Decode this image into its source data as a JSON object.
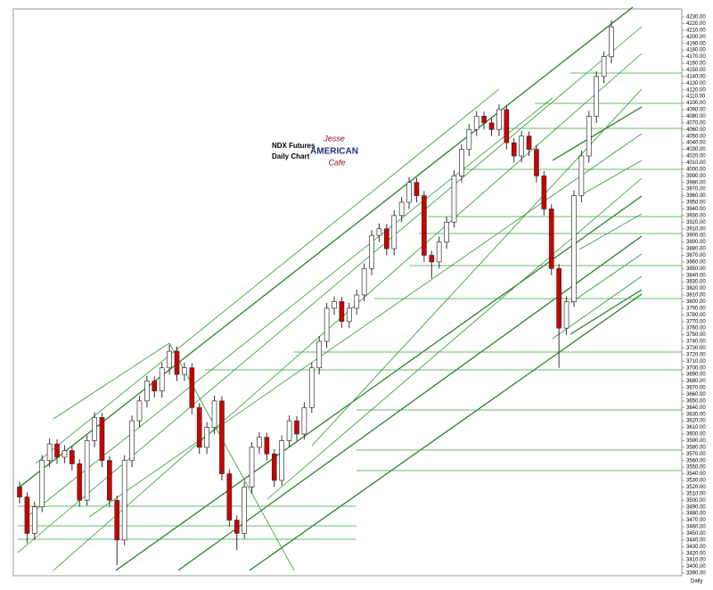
{
  "chart_data": {
    "type": "candlestick",
    "title": "NDX  Futures",
    "subtitle": "Daily Chart",
    "logo": [
      "Jesse",
      "AMERICAN",
      "Cafe"
    ],
    "period_label": "Daily",
    "up_color": "#ffffff",
    "down_color": "#cc0000",
    "wick_color": "#333333",
    "ylim": [
      3390,
      4230
    ],
    "yticks": [
      {
        "value": 3390,
        "label": "3390.00"
      },
      {
        "value": 3400,
        "label": "3400.00"
      },
      {
        "value": 3410,
        "label": "3410.00"
      },
      {
        "value": 3420,
        "label": "3420.00"
      },
      {
        "value": 3430,
        "label": "3430.00"
      },
      {
        "value": 3440,
        "label": "3440.00"
      },
      {
        "value": 3450,
        "label": "3450.00"
      },
      {
        "value": 3460,
        "label": "3460.00"
      },
      {
        "value": 3470,
        "label": "3470.00"
      },
      {
        "value": 3480,
        "label": "3480.00"
      },
      {
        "value": 3490,
        "label": "3490.00"
      },
      {
        "value": 3500,
        "label": "3500.00"
      },
      {
        "value": 3510,
        "label": "3510.00"
      },
      {
        "value": 3520,
        "label": "3520.00"
      },
      {
        "value": 3530,
        "label": "3530.00"
      },
      {
        "value": 3540,
        "label": "3540.00"
      },
      {
        "value": 3550,
        "label": "3550.00"
      },
      {
        "value": 3560,
        "label": "3560.00"
      },
      {
        "value": 3570,
        "label": "3570.00"
      },
      {
        "value": 3580,
        "label": "3580.00"
      },
      {
        "value": 3590,
        "label": "3590.00"
      },
      {
        "value": 3600,
        "label": "3600.00"
      },
      {
        "value": 3610,
        "label": "3610.00"
      },
      {
        "value": 3620,
        "label": "3620.00"
      },
      {
        "value": 3630,
        "label": "3630.00"
      },
      {
        "value": 3640,
        "label": "3640.00"
      },
      {
        "value": 3650,
        "label": "3650.00"
      },
      {
        "value": 3660,
        "label": "3660.00"
      },
      {
        "value": 3670,
        "label": "3670.00"
      },
      {
        "value": 3680,
        "label": "3680.00"
      },
      {
        "value": 3690,
        "label": "3690.00"
      },
      {
        "value": 3700,
        "label": "3700.00"
      },
      {
        "value": 3710,
        "label": "3710.00"
      },
      {
        "value": 3720,
        "label": "3720.00"
      },
      {
        "value": 3730,
        "label": "3730.00"
      },
      {
        "value": 3740,
        "label": "3740.00"
      },
      {
        "value": 3750,
        "label": "3750.00"
      },
      {
        "value": 3760,
        "label": "3760.00"
      },
      {
        "value": 3770,
        "label": "3770.00"
      },
      {
        "value": 3780,
        "label": "3780.00"
      },
      {
        "value": 3790,
        "label": "3790.00"
      },
      {
        "value": 3800,
        "label": "3800.00"
      },
      {
        "value": 3810,
        "label": "3810.00"
      },
      {
        "value": 3820,
        "label": "3820.00"
      },
      {
        "value": 3830,
        "label": "3830.00"
      },
      {
        "value": 3840,
        "label": "3840.00"
      },
      {
        "value": 3850,
        "label": "3850.00"
      },
      {
        "value": 3860,
        "label": "3860.00"
      },
      {
        "value": 3870,
        "label": "3870.00"
      },
      {
        "value": 3880,
        "label": "3880.00"
      },
      {
        "value": 3890,
        "label": "3890.00"
      },
      {
        "value": 3900,
        "label": "3900.00"
      },
      {
        "value": 3910,
        "label": "3910.00"
      },
      {
        "value": 3920,
        "label": "3920.00"
      },
      {
        "value": 3930,
        "label": "3930.00"
      },
      {
        "value": 3940,
        "label": "3940.00"
      },
      {
        "value": 3950,
        "label": "3950.00"
      },
      {
        "value": 3960,
        "label": "3960.00"
      },
      {
        "value": 3970,
        "label": "3970.00"
      },
      {
        "value": 3980,
        "label": "3980.00"
      },
      {
        "value": 3990,
        "label": "3990.00"
      },
      {
        "value": 4000,
        "label": "4000.00"
      },
      {
        "value": 4010,
        "label": "4010.00"
      },
      {
        "value": 4020,
        "label": "4020.00"
      },
      {
        "value": 4030,
        "label": "4030.00"
      },
      {
        "value": 4040,
        "label": "4040.00"
      },
      {
        "value": 4050,
        "label": "4050.00"
      },
      {
        "value": 4060,
        "label": "4060.00"
      },
      {
        "value": 4070,
        "label": "4070.00"
      },
      {
        "value": 4080,
        "label": "4080.00"
      },
      {
        "value": 4090,
        "label": "4090.00"
      },
      {
        "value": 4100,
        "label": "4100.00"
      },
      {
        "value": 4110,
        "label": "4110.00"
      },
      {
        "value": 4120,
        "label": "4120.00"
      },
      {
        "value": 4130,
        "label": "4130.00"
      },
      {
        "value": 4140,
        "label": "4140.00"
      },
      {
        "value": 4150,
        "label": "4150.00"
      },
      {
        "value": 4160,
        "label": "4160.00"
      },
      {
        "value": 4170,
        "label": "4170.00"
      },
      {
        "value": 4180,
        "label": "4180.00"
      },
      {
        "value": 4190,
        "label": "4190.00"
      },
      {
        "value": 4200,
        "label": "4200.00"
      },
      {
        "value": 4210,
        "label": "4210.00"
      },
      {
        "value": 4220,
        "label": "4220.00"
      },
      {
        "value": 4230,
        "label": "4230.00"
      }
    ],
    "open": [
      3520,
      3505,
      3450,
      3490,
      3560,
      3585,
      3565,
      3575,
      3555,
      3500,
      3590,
      3625,
      3560,
      3500,
      3440,
      3560,
      3620,
      3650,
      3680,
      3665,
      3700,
      3725,
      3690,
      3700,
      3640,
      3580,
      3610,
      3650,
      3540,
      3470,
      3450,
      3520,
      3580,
      3595,
      3570,
      3530,
      3590,
      3620,
      3600,
      3640,
      3700,
      3740,
      3790,
      3800,
      3770,
      3790,
      3810,
      3850,
      3900,
      3910,
      3880,
      3930,
      3950,
      3980,
      3960,
      3870,
      3860,
      3890,
      3920,
      3990,
      4030,
      4060,
      4080,
      4070,
      4060,
      4090,
      4040,
      4020,
      4050,
      4030,
      3990,
      3940,
      3850,
      3760,
      3800,
      3960,
      4020,
      4080,
      4140,
      4170
    ],
    "high": [
      3528,
      3512,
      3498,
      3568,
      3593,
      3592,
      3583,
      3582,
      3562,
      3598,
      3633,
      3632,
      3567,
      3507,
      3568,
      3628,
      3658,
      3688,
      3687,
      3708,
      3735,
      3732,
      3708,
      3707,
      3647,
      3618,
      3658,
      3657,
      3547,
      3477,
      3528,
      3588,
      3603,
      3602,
      3577,
      3598,
      3628,
      3627,
      3648,
      3708,
      3748,
      3798,
      3808,
      3807,
      3798,
      3818,
      3858,
      3908,
      3918,
      3917,
      3938,
      3958,
      3988,
      3987,
      3967,
      3877,
      3898,
      3928,
      3998,
      4038,
      4068,
      4088,
      4087,
      4077,
      4098,
      4097,
      4047,
      4058,
      4057,
      4037,
      3997,
      3947,
      3857,
      3808,
      3968,
      4028,
      4088,
      4148,
      4178,
      4225
    ],
    "low": [
      3495,
      3435,
      3440,
      3482,
      3550,
      3555,
      3556,
      3545,
      3490,
      3492,
      3580,
      3550,
      3490,
      3402,
      3432,
      3550,
      3610,
      3640,
      3655,
      3655,
      3690,
      3680,
      3680,
      3630,
      3570,
      3570,
      3600,
      3530,
      3460,
      3425,
      3442,
      3510,
      3570,
      3560,
      3520,
      3522,
      3580,
      3590,
      3592,
      3632,
      3690,
      3730,
      3780,
      3760,
      3760,
      3780,
      3800,
      3840,
      3890,
      3870,
      3870,
      3920,
      3940,
      3950,
      3860,
      3835,
      3850,
      3880,
      3912,
      3980,
      4020,
      4050,
      4060,
      4050,
      4050,
      4030,
      4010,
      4010,
      4020,
      3980,
      3930,
      3840,
      3700,
      3750,
      3792,
      3950,
      4010,
      4070,
      4130,
      4160
    ],
    "close": [
      3505,
      3450,
      3490,
      3560,
      3585,
      3565,
      3575,
      3555,
      3500,
      3590,
      3625,
      3560,
      3500,
      3440,
      3560,
      3620,
      3650,
      3680,
      3665,
      3700,
      3725,
      3690,
      3700,
      3640,
      3580,
      3610,
      3650,
      3540,
      3470,
      3450,
      3520,
      3580,
      3595,
      3570,
      3530,
      3590,
      3620,
      3600,
      3640,
      3700,
      3740,
      3790,
      3800,
      3770,
      3790,
      3810,
      3850,
      3900,
      3910,
      3880,
      3930,
      3950,
      3980,
      3960,
      3870,
      3860,
      3890,
      3920,
      3990,
      4030,
      4060,
      4080,
      4070,
      4060,
      4090,
      4040,
      4020,
      4050,
      4030,
      3990,
      3940,
      3850,
      3760,
      3800,
      3960,
      4020,
      4080,
      4140,
      4170,
      4215
    ]
  }
}
